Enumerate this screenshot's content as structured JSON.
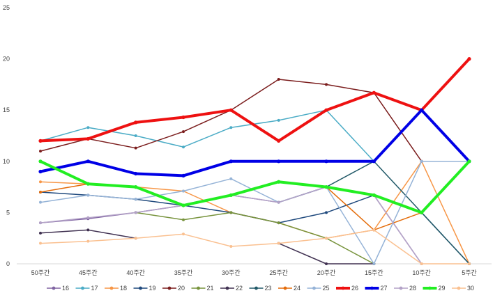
{
  "chart_data": {
    "type": "line",
    "categories": [
      "50주간",
      "45주간",
      "40주간",
      "35주간",
      "30주간",
      "25주간",
      "20주간",
      "15주간",
      "10주간",
      "5주간"
    ],
    "y_ticks": [
      "0",
      "5",
      "10",
      "15",
      "20",
      "25"
    ],
    "ylim": [
      0,
      25
    ],
    "grid": false,
    "legend_position": "bottom",
    "series": [
      {
        "name": "16",
        "color": "#8064a2",
        "values": [
          4.0,
          4.4,
          5.0,
          5.7,
          6.7,
          6.0,
          7.5,
          6.7,
          0,
          null
        ],
        "thick": false
      },
      {
        "name": "17",
        "color": "#4bacc6",
        "values": [
          12.0,
          13.3,
          12.5,
          11.4,
          13.3,
          14.0,
          15.0,
          10.0,
          null,
          null
        ],
        "thick": false
      },
      {
        "name": "18",
        "color": "#f79646",
        "values": [
          8.0,
          7.8,
          7.5,
          7.1,
          5.0,
          4.0,
          2.5,
          3.3,
          10.0,
          0
        ],
        "thick": false
      },
      {
        "name": "19",
        "color": "#1f497d",
        "values": [
          7.0,
          6.7,
          6.3,
          5.7,
          5.0,
          4.0,
          5.0,
          6.7,
          5.0,
          0
        ],
        "thick": false
      },
      {
        "name": "20",
        "color": "#7b1d1d",
        "values": [
          11.0,
          12.2,
          11.3,
          12.9,
          15.0,
          18.0,
          17.5,
          16.7,
          10.0,
          null
        ],
        "thick": false
      },
      {
        "name": "21",
        "color": "#77933c",
        "values": [
          null,
          null,
          5.0,
          4.3,
          5.0,
          4.0,
          2.5,
          0,
          null,
          null
        ],
        "thick": false
      },
      {
        "name": "22",
        "color": "#403151",
        "values": [
          3.0,
          3.3,
          2.5,
          null,
          null,
          2.0,
          0,
          0,
          null,
          null
        ],
        "thick": false
      },
      {
        "name": "23",
        "color": "#215968",
        "values": [
          null,
          null,
          null,
          null,
          null,
          6.0,
          7.5,
          10.0,
          5.0,
          0
        ],
        "thick": false
      },
      {
        "name": "24",
        "color": "#e46c0a",
        "values": [
          7.0,
          7.8,
          null,
          null,
          null,
          null,
          7.5,
          3.3,
          5.0,
          null
        ],
        "thick": false
      },
      {
        "name": "25",
        "color": "#95b3d7",
        "values": [
          6.0,
          6.7,
          6.3,
          7.1,
          8.3,
          6.0,
          7.5,
          0,
          10.0,
          10.0
        ],
        "thick": false
      },
      {
        "name": "26",
        "color": "#ee1111",
        "values": [
          12.0,
          12.2,
          13.8,
          14.3,
          15.0,
          12.0,
          15.0,
          16.7,
          15.0,
          20.0
        ],
        "thick": true
      },
      {
        "name": "27",
        "color": "#0000e6",
        "values": [
          9.0,
          10.0,
          8.8,
          8.6,
          10.0,
          10.0,
          10.0,
          10.0,
          15.0,
          10.0
        ],
        "thick": true
      },
      {
        "name": "28",
        "color": "#b3a2c7",
        "values": [
          4.0,
          4.5,
          5.0,
          5.7,
          6.7,
          6.0,
          7.5,
          6.7,
          0,
          null
        ],
        "thick": false
      },
      {
        "name": "29",
        "color": "#22ee22",
        "values": [
          10.0,
          7.8,
          7.5,
          5.7,
          6.7,
          8.0,
          7.5,
          6.7,
          5.0,
          10.0
        ],
        "thick": true
      },
      {
        "name": "30",
        "color": "#fac090",
        "values": [
          2.0,
          2.2,
          2.5,
          2.9,
          1.7,
          2.0,
          2.5,
          3.3,
          0,
          0
        ],
        "thick": false
      }
    ]
  }
}
